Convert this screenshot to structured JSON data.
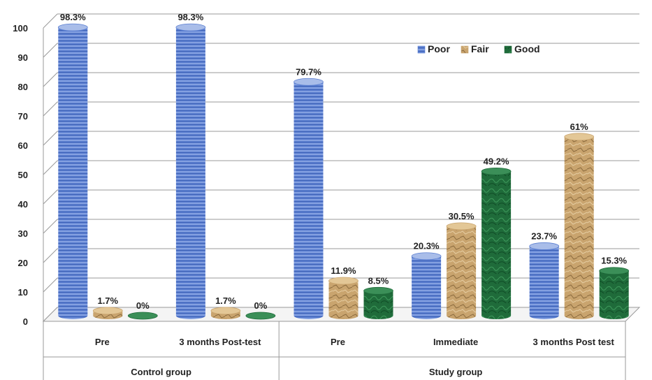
{
  "chart_data": {
    "type": "bar",
    "ylim": [
      0,
      100
    ],
    "yticks": [
      0,
      10,
      20,
      30,
      40,
      50,
      60,
      70,
      80,
      90,
      100
    ],
    "groups": [
      {
        "label": "Control group",
        "categories": [
          "Pre",
          "3 months Post-test"
        ]
      },
      {
        "label": "Study group",
        "categories": [
          "Pre",
          "Immediate",
          "3 months Post test"
        ]
      }
    ],
    "categories": [
      "Pre",
      "3 months Post-test",
      "Pre",
      "Immediate",
      "3 months Post test"
    ],
    "series": [
      {
        "name": "Poor",
        "color": "#5b7fd1",
        "values": [
          98.3,
          98.3,
          79.7,
          20.3,
          23.7
        ],
        "labels": [
          "98.3%",
          "98.3%",
          "79.7%",
          "20.3%",
          "23.7%"
        ]
      },
      {
        "name": "Fair",
        "color": "#c9a46e",
        "values": [
          1.7,
          1.7,
          11.9,
          30.5,
          61
        ],
        "labels": [
          "1.7%",
          "1.7%",
          "11.9%",
          "30.5%",
          "61%"
        ]
      },
      {
        "name": "Good",
        "color": "#1f6b3a",
        "values": [
          0,
          0,
          8.5,
          49.2,
          15.3
        ],
        "labels": [
          "0%",
          "0%",
          "8.5%",
          "49.2%",
          "15.3%"
        ]
      }
    ],
    "legend_position": "top-right",
    "grid": true
  }
}
